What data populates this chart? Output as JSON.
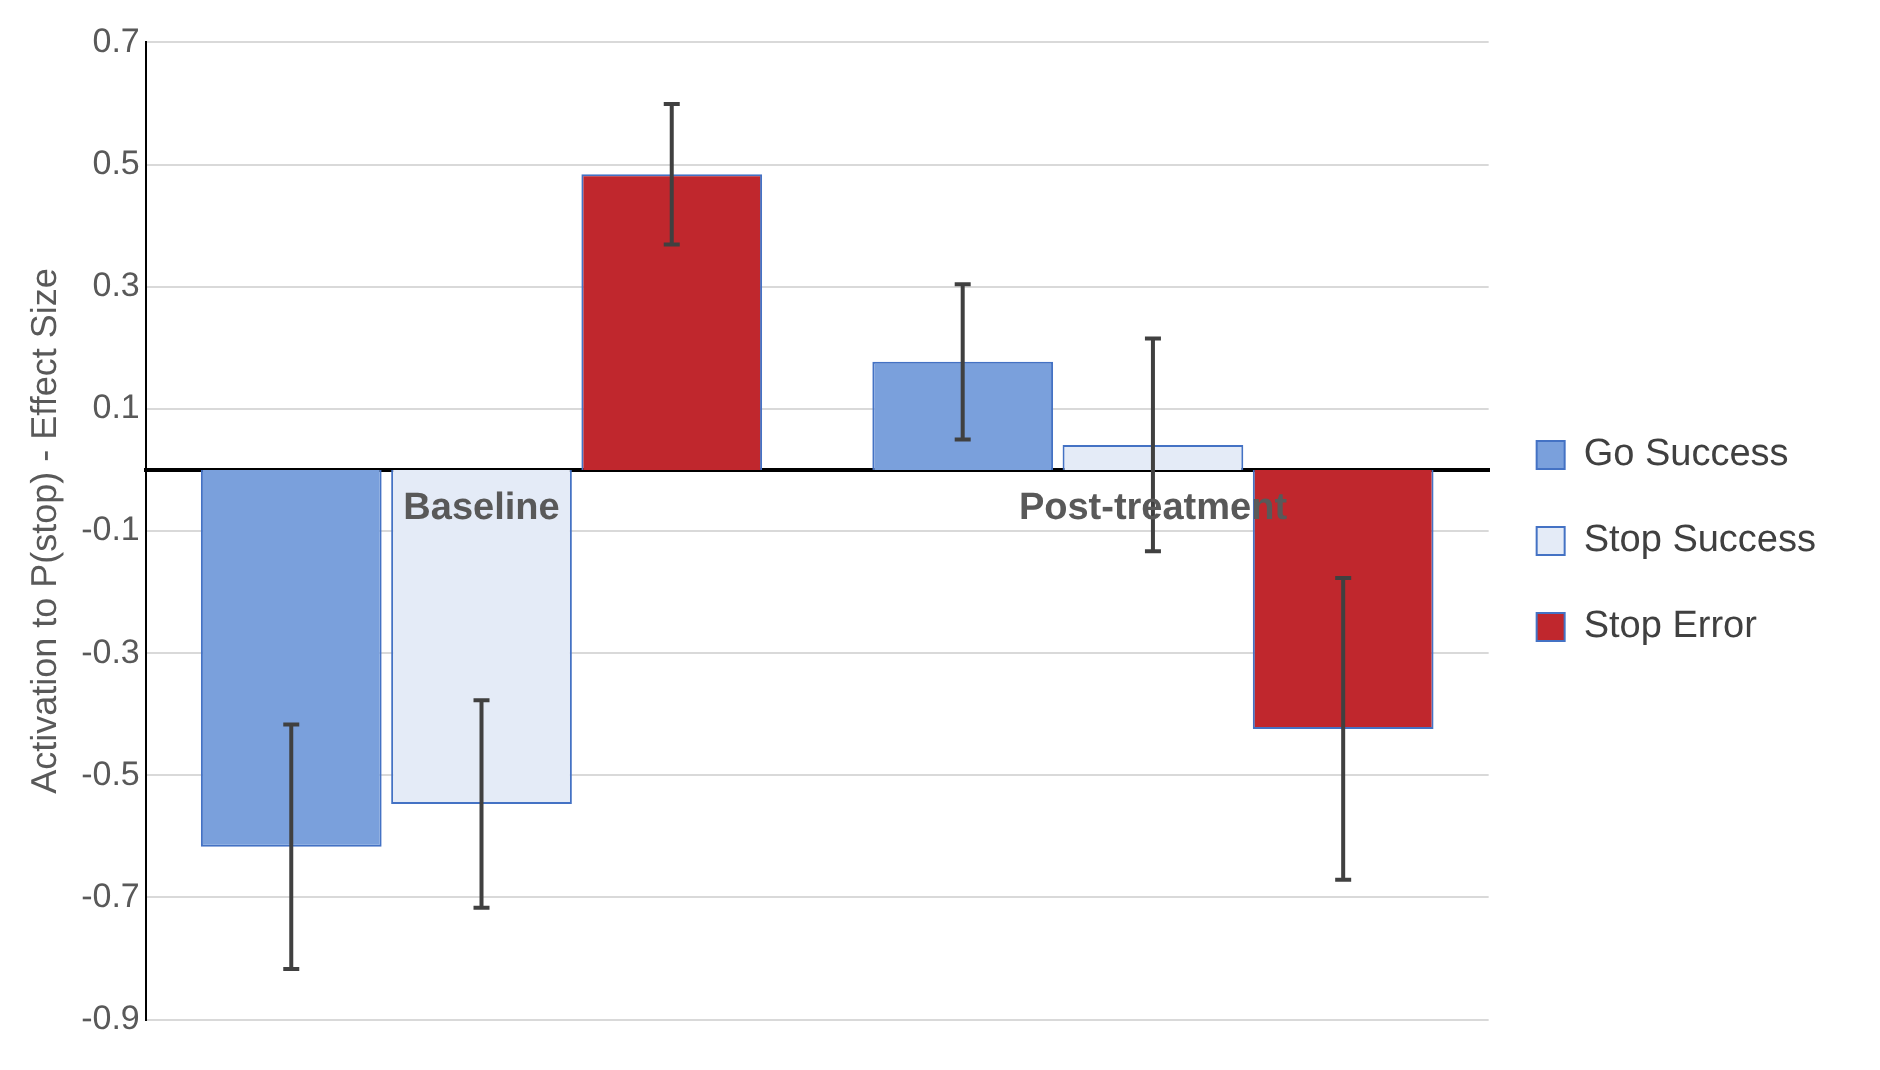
{
  "chart_data": {
    "type": "bar",
    "ylabel": "Activation to P(stop) - Effect Size",
    "categories": [
      "Baseline",
      "Post-treatment"
    ],
    "series": [
      {
        "name": "Go Success",
        "color": "#7aa0dc",
        "values": [
          -0.617,
          0.177
        ],
        "errors": [
          0.2,
          0.127
        ]
      },
      {
        "name": "Stop Success",
        "color": "#e4ebf7",
        "values": [
          -0.547,
          0.041
        ],
        "errors": [
          0.17,
          0.174
        ]
      },
      {
        "name": "Stop Error",
        "color": "#c0272d",
        "values": [
          0.484,
          -0.424
        ],
        "errors": [
          0.115,
          0.247
        ]
      }
    ],
    "ylim": [
      -0.9,
      0.7
    ],
    "yticks": [
      -0.9,
      -0.7,
      -0.5,
      -0.3,
      -0.1,
      0.1,
      0.3,
      0.5,
      0.7
    ],
    "grid": "y",
    "legend": "right"
  }
}
